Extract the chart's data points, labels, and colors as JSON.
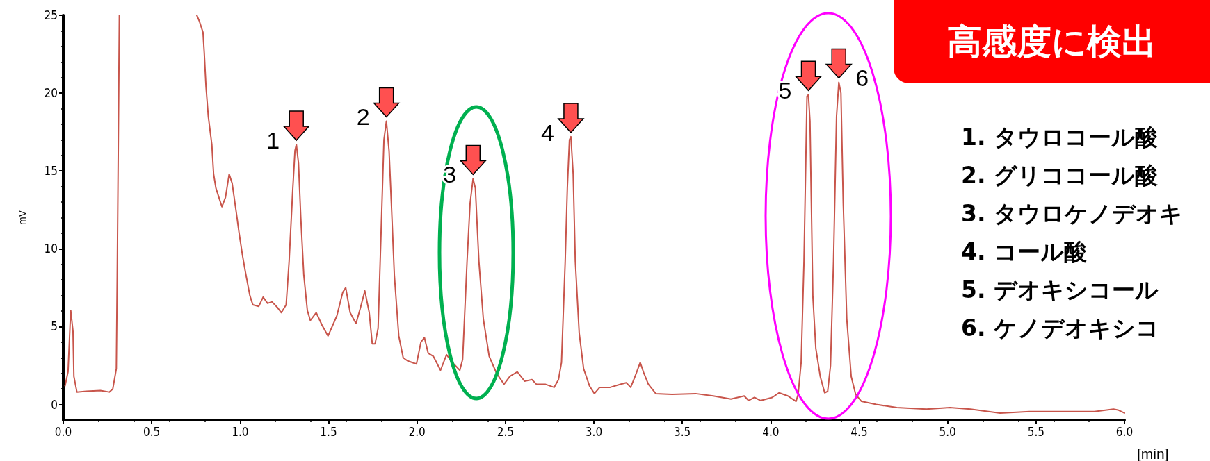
{
  "chart_data": {
    "type": "line",
    "xlabel": "[min]",
    "ylabel": "mV",
    "color": "#c8554b",
    "marker": "none",
    "xlim": [
      0,
      6
    ],
    "ylim": [
      -1,
      25
    ],
    "xticks": [
      {
        "value": 0,
        "label": "0.0"
      },
      0.5,
      {
        "value": 1,
        "label": "1.0"
      },
      1.5,
      {
        "value": 2,
        "label": "2.0"
      },
      2.5,
      {
        "value": 3,
        "label": "3.0"
      },
      3.5,
      {
        "value": 4,
        "label": "4.0"
      },
      4.5,
      {
        "value": 5,
        "label": "5.0"
      },
      5.5,
      {
        "value": 6,
        "label": "6.0"
      }
    ],
    "yticks": [
      0,
      5,
      10,
      15,
      20,
      25
    ],
    "x": [
      0.01,
      0.027,
      0.042,
      0.055,
      0.06,
      0.077,
      0.13,
      0.21,
      0.26,
      0.28,
      0.3,
      0.305,
      0.317,
      0.5,
      0.755,
      0.77,
      0.79,
      0.797,
      0.807,
      0.82,
      0.84,
      0.85,
      0.863,
      0.88,
      0.897,
      0.917,
      0.938,
      0.955,
      0.98,
      0.993,
      1.013,
      1.03,
      1.055,
      1.072,
      1.105,
      1.13,
      1.155,
      1.18,
      1.213,
      1.233,
      1.26,
      1.277,
      1.297,
      1.31,
      1.318,
      1.33,
      1.343,
      1.36,
      1.38,
      1.397,
      1.43,
      1.463,
      1.497,
      1.547,
      1.58,
      1.597,
      1.622,
      1.655,
      1.68,
      1.705,
      1.73,
      1.747,
      1.763,
      1.78,
      1.797,
      1.813,
      1.827,
      1.842,
      1.855,
      1.872,
      1.897,
      1.922,
      1.947,
      1.997,
      2.022,
      2.042,
      2.063,
      2.092,
      2.133,
      2.167,
      2.2,
      2.242,
      2.258,
      2.283,
      2.3,
      2.317,
      2.33,
      2.35,
      2.375,
      2.408,
      2.45,
      2.492,
      2.525,
      2.567,
      2.608,
      2.65,
      2.675,
      2.725,
      2.775,
      2.8,
      2.817,
      2.838,
      2.85,
      2.862,
      2.87,
      2.883,
      2.895,
      2.917,
      2.942,
      2.975,
      3.003,
      3.033,
      3.092,
      3.15,
      3.183,
      3.208,
      3.233,
      3.262,
      3.283,
      3.308,
      3.35,
      3.442,
      3.575,
      3.675,
      3.775,
      3.85,
      3.875,
      3.908,
      3.942,
      4.008,
      4.047,
      4.097,
      4.143,
      4.155,
      4.172,
      4.188,
      4.205,
      4.213,
      4.222,
      4.238,
      4.255,
      4.28,
      4.305,
      4.322,
      4.338,
      4.355,
      4.372,
      4.385,
      4.397,
      4.41,
      4.43,
      4.455,
      4.48,
      4.513,
      4.597,
      4.713,
      4.88,
      5.013,
      5.13,
      5.297,
      5.463,
      5.63,
      5.83,
      5.938,
      5.963,
      6.0
    ],
    "values": [
      1.2,
      2.1,
      6.05,
      4.7,
      1.8,
      0.8,
      0.85,
      0.9,
      0.8,
      1.0,
      2.3,
      8.3,
      25,
      null,
      25,
      24.6,
      23.9,
      22.6,
      20.4,
      18.5,
      16.7,
      14.8,
      13.9,
      13.3,
      12.7,
      13.3,
      14.8,
      14.2,
      12.2,
      11.1,
      9.6,
      8.5,
      7.0,
      6.4,
      6.3,
      6.9,
      6.5,
      6.6,
      6.2,
      5.9,
      6.4,
      9.2,
      13.7,
      16.3,
      16.7,
      15.5,
      12.0,
      8.3,
      6.05,
      5.4,
      5.9,
      5.1,
      4.4,
      5.7,
      7.2,
      7.5,
      5.9,
      5.2,
      6.2,
      7.3,
      5.9,
      3.9,
      3.9,
      4.9,
      11.1,
      17.0,
      18.2,
      16.3,
      12.9,
      8.3,
      4.4,
      3.0,
      2.8,
      2.6,
      4.0,
      4.3,
      3.3,
      3.1,
      2.2,
      3.2,
      2.7,
      2.2,
      2.9,
      9.2,
      12.9,
      14.5,
      13.9,
      9.2,
      5.5,
      3.1,
      2.0,
      1.3,
      1.8,
      2.1,
      1.5,
      1.6,
      1.3,
      1.3,
      1.1,
      1.6,
      2.7,
      9.2,
      13.9,
      17.0,
      17.2,
      14.8,
      9.2,
      4.6,
      2.3,
      1.2,
      0.7,
      1.1,
      1.1,
      1.3,
      1.4,
      1.1,
      1.8,
      2.7,
      2.0,
      1.3,
      0.7,
      0.65,
      0.7,
      0.55,
      0.35,
      0.55,
      0.25,
      0.45,
      0.25,
      0.45,
      0.75,
      0.55,
      0.2,
      0.65,
      2.7,
      9.2,
      19.8,
      19.9,
      18.2,
      7.0,
      3.6,
      1.8,
      0.75,
      0.85,
      2.5,
      9.2,
      18.5,
      20.7,
      20.0,
      12.9,
      5.5,
      1.8,
      0.65,
      0.2,
      0.0,
      -0.2,
      -0.3,
      -0.2,
      -0.3,
      -0.55,
      -0.45,
      -0.45,
      -0.45,
      -0.3,
      -0.35,
      -0.55
    ],
    "annotations": [
      {
        "text": "1",
        "x": 1.318,
        "y": 16.7
      },
      {
        "text": "2",
        "x": 1.827,
        "y": 18.2
      },
      {
        "text": "3",
        "x": 2.317,
        "y": 14.5
      },
      {
        "text": "4",
        "x": 2.87,
        "y": 17.2
      },
      {
        "text": "5",
        "x": 4.213,
        "y": 19.9
      },
      {
        "text": "6",
        "x": 4.385,
        "y": 20.7
      },
      "高感度に検出",
      "1. タウロコール酸",
      "2. グリココール酸",
      "3. タウロケノデオキ",
      "4. コール酸",
      "5. デオキシコール",
      "6. ケノデオキシコ"
    ]
  }
}
